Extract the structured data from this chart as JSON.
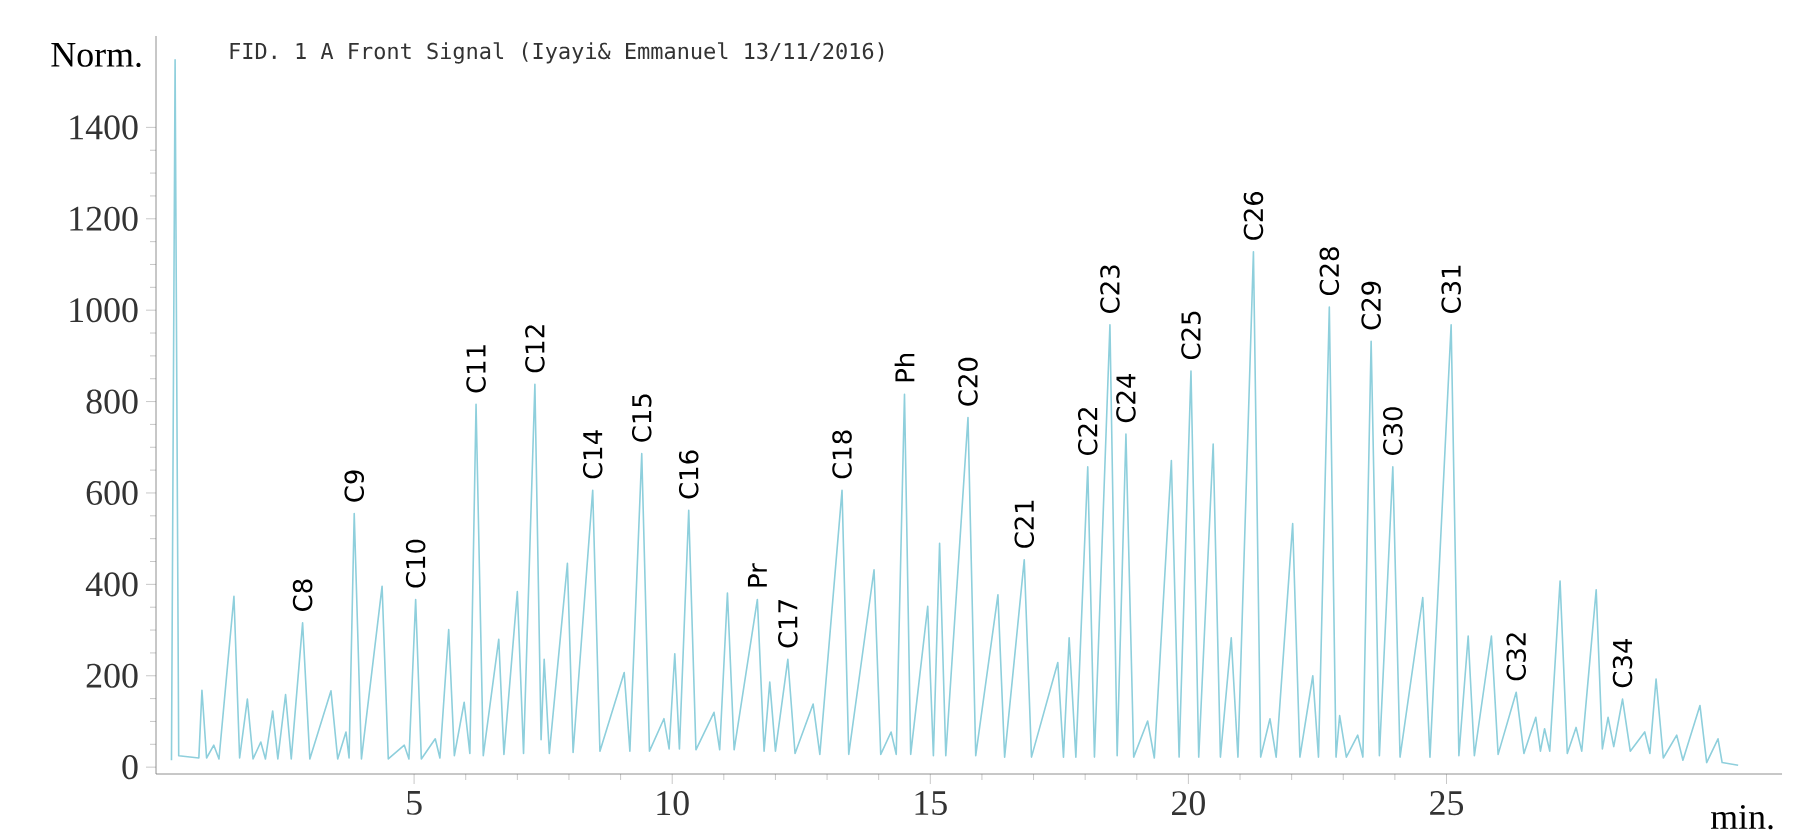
{
  "chart_data": {
    "type": "line",
    "title": "FID. 1 A Front Signal (Iyayi& Emmanuel 13/11/2016)",
    "xlabel": "min.",
    "ylabel": "Norm.",
    "xlim": [
      0,
      31.5
    ],
    "ylim": [
      -15,
      1600
    ],
    "xticks": [
      5,
      10,
      15,
      20,
      25
    ],
    "yticks": [
      0,
      200,
      400,
      600,
      800,
      1000,
      1200,
      1400
    ],
    "marker": "none",
    "series": [
      {
        "color": "#8ecfdc",
        "x": [
          0.3,
          0.37,
          0.44,
          0.83,
          0.89,
          0.98,
          1.12,
          1.22,
          1.51,
          1.62,
          1.77,
          1.88,
          2.03,
          2.12,
          2.26,
          2.36,
          2.51,
          2.62,
          2.84,
          2.98,
          3.39,
          3.52,
          3.68,
          3.74,
          3.84,
          3.98,
          4.38,
          4.5,
          4.81,
          4.9,
          5.03,
          5.14,
          5.41,
          5.5,
          5.67,
          5.78,
          5.97,
          6.08,
          6.2,
          6.34,
          6.64,
          6.74,
          7.0,
          7.12,
          7.34,
          7.46,
          7.52,
          7.62,
          7.97,
          8.08,
          8.46,
          8.6,
          9.07,
          9.18,
          9.41,
          9.56,
          9.84,
          9.94,
          10.05,
          10.14,
          10.32,
          10.46,
          10.81,
          10.92,
          11.07,
          11.2,
          11.65,
          11.78,
          11.89,
          12.0,
          12.24,
          12.38,
          12.73,
          12.86,
          13.29,
          13.42,
          13.91,
          14.04,
          14.24,
          14.34,
          14.5,
          14.62,
          14.95,
          15.06,
          15.18,
          15.3,
          15.73,
          15.88,
          16.31,
          16.44,
          16.82,
          16.96,
          17.47,
          17.58,
          17.69,
          17.82,
          18.05,
          18.18,
          18.48,
          18.62,
          18.79,
          18.94,
          19.21,
          19.34,
          19.67,
          19.82,
          20.05,
          20.2,
          20.48,
          20.62,
          20.83,
          20.96,
          21.26,
          21.4,
          21.58,
          21.7,
          22.02,
          22.16,
          22.41,
          22.52,
          22.73,
          22.86,
          22.93,
          23.06,
          23.28,
          23.38,
          23.54,
          23.7,
          23.96,
          24.1,
          24.54,
          24.68,
          25.09,
          25.24,
          25.42,
          25.54,
          25.87,
          26.0,
          26.35,
          26.5,
          26.73,
          26.82,
          26.9,
          27.0,
          27.2,
          27.34,
          27.51,
          27.62,
          27.9,
          28.02,
          28.13,
          28.24,
          28.41,
          28.56,
          28.84,
          28.94,
          29.06,
          29.2,
          29.46,
          29.58,
          29.91,
          30.04,
          30.26,
          30.34,
          30.65
        ],
        "values": [
          15,
          1548,
          25,
          20,
          168,
          20,
          48,
          18,
          374,
          20,
          149,
          18,
          55,
          18,
          123,
          18,
          159,
          18,
          316,
          18,
          167,
          18,
          77,
          20,
          555,
          18,
          396,
          18,
          48,
          18,
          367,
          18,
          62,
          20,
          301,
          25,
          142,
          30,
          794,
          25,
          280,
          28,
          384,
          30,
          838,
          60,
          236,
          30,
          446,
          32,
          606,
          35,
          207,
          35,
          686,
          35,
          106,
          40,
          248,
          40,
          562,
          38,
          120,
          38,
          381,
          38,
          367,
          35,
          186,
          35,
          236,
          30,
          138,
          28,
          606,
          28,
          432,
          28,
          77,
          28,
          816,
          28,
          352,
          25,
          490,
          25,
          765,
          25,
          377,
          22,
          454,
          22,
          229,
          22,
          283,
          22,
          657,
          22,
          968,
          25,
          729,
          22,
          101,
          20,
          671,
          22,
          867,
          22,
          707,
          22,
          283,
          22,
          1128,
          22,
          106,
          22,
          533,
          22,
          200,
          22,
          1007,
          22,
          113,
          22,
          70,
          22,
          932,
          25,
          657,
          22,
          371,
          22,
          968,
          25,
          287,
          25,
          287,
          28,
          164,
          30,
          109,
          35,
          84,
          35,
          407,
          30,
          87,
          35,
          388,
          40,
          109,
          45,
          149,
          35,
          77,
          30,
          193,
          20,
          70,
          15,
          135,
          10,
          62,
          10,
          4
        ]
      }
    ],
    "annotations": [
      {
        "text": "C8",
        "x": 2.84,
        "y": 316
      },
      {
        "text": "C9",
        "x": 3.84,
        "y": 555
      },
      {
        "text": "C10",
        "x": 5.03,
        "y": 367
      },
      {
        "text": "C11",
        "x": 6.2,
        "y": 794
      },
      {
        "text": "C12",
        "x": 7.34,
        "y": 838
      },
      {
        "text": "C14",
        "x": 8.46,
        "y": 606
      },
      {
        "text": "C15",
        "x": 9.41,
        "y": 686
      },
      {
        "text": "C16",
        "x": 10.32,
        "y": 562
      },
      {
        "text": "Pr",
        "x": 11.65,
        "y": 367
      },
      {
        "text": "C17",
        "x": 12.24,
        "y": 236
      },
      {
        "text": "C18",
        "x": 13.29,
        "y": 606
      },
      {
        "text": "Ph",
        "x": 14.5,
        "y": 816
      },
      {
        "text": "C20",
        "x": 15.73,
        "y": 765
      },
      {
        "text": "C21",
        "x": 16.82,
        "y": 454
      },
      {
        "text": "C22",
        "x": 18.05,
        "y": 657
      },
      {
        "text": "C23",
        "x": 18.48,
        "y": 968
      },
      {
        "text": "C24",
        "x": 18.79,
        "y": 729
      },
      {
        "text": "C25",
        "x": 20.05,
        "y": 867
      },
      {
        "text": "C26",
        "x": 21.26,
        "y": 1128
      },
      {
        "text": "C28",
        "x": 22.73,
        "y": 1007
      },
      {
        "text": "C29",
        "x": 23.54,
        "y": 932
      },
      {
        "text": "C30",
        "x": 23.96,
        "y": 657
      },
      {
        "text": "C31",
        "x": 25.09,
        "y": 968
      },
      {
        "text": "C32",
        "x": 26.35,
        "y": 164
      },
      {
        "text": "C34",
        "x": 28.41,
        "y": 149
      }
    ]
  }
}
